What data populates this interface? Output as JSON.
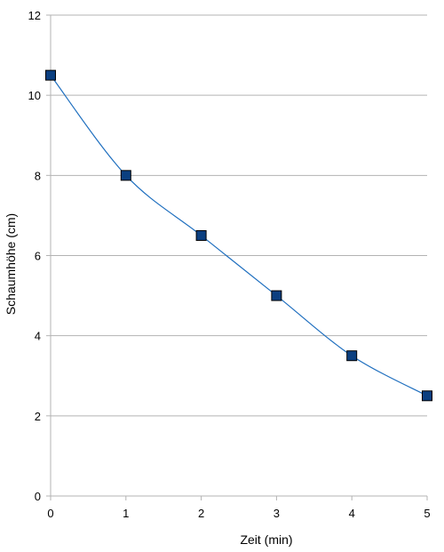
{
  "chart_data": {
    "type": "line",
    "xlabel": "Zeit (min)",
    "ylabel": "Schaumhöhe (cm)",
    "xlim": [
      0,
      5
    ],
    "ylim": [
      0,
      12
    ],
    "x_ticks": [
      "0",
      "1",
      "2",
      "3",
      "4",
      "5"
    ],
    "y_ticks": [
      "0",
      "2",
      "4",
      "6",
      "8",
      "10",
      "12"
    ],
    "grid": true,
    "legend": false,
    "series": [
      {
        "x": [
          0,
          1,
          2,
          3,
          4,
          5
        ],
        "values": [
          10.5,
          8,
          6.5,
          5,
          3.5,
          2.5
        ],
        "line_color": "#1f6fbf",
        "marker": "square",
        "marker_color": "#0b3f80",
        "marker_edge": "#000000"
      }
    ],
    "gridline_color": "#b3b3b3",
    "axis_color": "#b3b3b3"
  }
}
